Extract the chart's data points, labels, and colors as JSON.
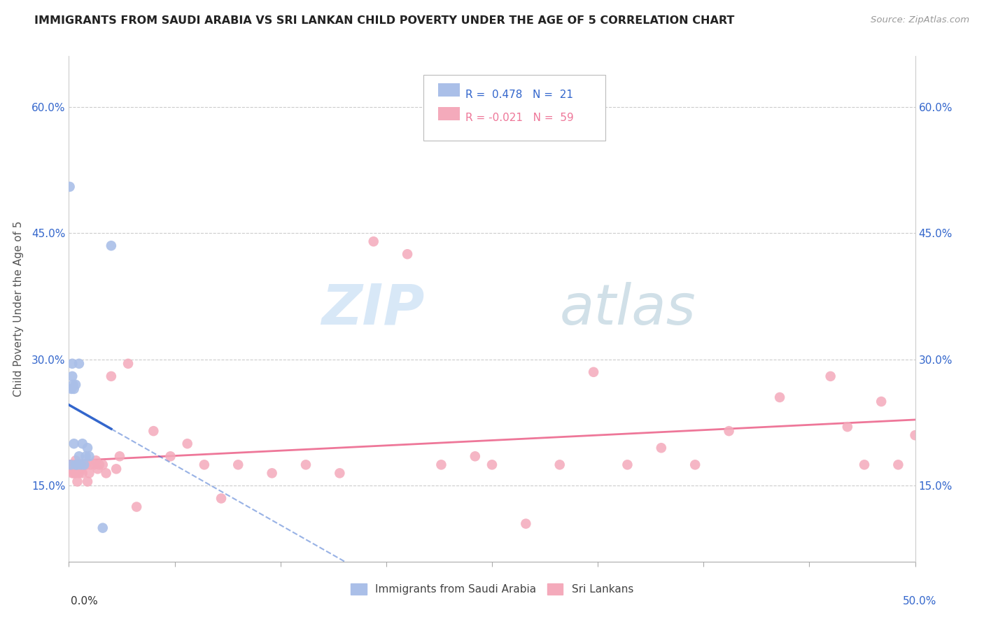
{
  "title": "IMMIGRANTS FROM SAUDI ARABIA VS SRI LANKAN CHILD POVERTY UNDER THE AGE OF 5 CORRELATION CHART",
  "source": "Source: ZipAtlas.com",
  "ylabel": "Child Poverty Under the Age of 5",
  "xlim": [
    0.0,
    0.5
  ],
  "ylim": [
    0.06,
    0.66
  ],
  "xticks": [
    0.0,
    0.0625,
    0.125,
    0.1875,
    0.25,
    0.3125,
    0.375,
    0.4375,
    0.5
  ],
  "xticklabels": [
    "",
    "",
    "",
    "",
    "",
    "",
    "",
    "",
    ""
  ],
  "x_edge_labels": [
    "0.0%",
    "50.0%"
  ],
  "yticks": [
    0.15,
    0.3,
    0.45,
    0.6
  ],
  "yticklabels": [
    "15.0%",
    "30.0%",
    "45.0%",
    "60.0%"
  ],
  "blue_R": 0.478,
  "blue_N": 21,
  "pink_R": -0.021,
  "pink_N": 59,
  "blue_color": "#AABFE8",
  "pink_color": "#F4AABB",
  "blue_line_color": "#3366CC",
  "pink_line_color": "#EE7799",
  "legend1": "Immigrants from Saudi Arabia",
  "legend2": "Sri Lankans",
  "watermark_zip": "ZIP",
  "watermark_atlas": "atlas",
  "blue_scatter_x": [
    0.0005,
    0.001,
    0.0015,
    0.002,
    0.002,
    0.0025,
    0.003,
    0.003,
    0.004,
    0.004,
    0.005,
    0.006,
    0.006,
    0.007,
    0.008,
    0.009,
    0.01,
    0.011,
    0.012,
    0.02,
    0.025
  ],
  "blue_scatter_y": [
    0.505,
    0.175,
    0.265,
    0.28,
    0.295,
    0.27,
    0.2,
    0.265,
    0.175,
    0.27,
    0.175,
    0.185,
    0.295,
    0.175,
    0.2,
    0.175,
    0.185,
    0.195,
    0.185,
    0.1,
    0.435
  ],
  "pink_scatter_x": [
    0.001,
    0.001,
    0.002,
    0.002,
    0.003,
    0.003,
    0.004,
    0.004,
    0.005,
    0.005,
    0.006,
    0.006,
    0.007,
    0.007,
    0.008,
    0.009,
    0.01,
    0.011,
    0.012,
    0.013,
    0.015,
    0.016,
    0.017,
    0.018,
    0.02,
    0.022,
    0.025,
    0.028,
    0.03,
    0.035,
    0.04,
    0.05,
    0.06,
    0.07,
    0.08,
    0.09,
    0.1,
    0.12,
    0.14,
    0.16,
    0.18,
    0.2,
    0.22,
    0.24,
    0.25,
    0.27,
    0.29,
    0.31,
    0.33,
    0.35,
    0.37,
    0.39,
    0.42,
    0.45,
    0.46,
    0.47,
    0.48,
    0.49,
    0.5
  ],
  "pink_scatter_y": [
    0.17,
    0.175,
    0.165,
    0.175,
    0.165,
    0.175,
    0.165,
    0.18,
    0.17,
    0.155,
    0.165,
    0.175,
    0.175,
    0.17,
    0.165,
    0.175,
    0.175,
    0.155,
    0.165,
    0.175,
    0.175,
    0.18,
    0.17,
    0.175,
    0.175,
    0.165,
    0.28,
    0.17,
    0.185,
    0.295,
    0.125,
    0.215,
    0.185,
    0.2,
    0.175,
    0.135,
    0.175,
    0.165,
    0.175,
    0.165,
    0.44,
    0.425,
    0.175,
    0.185,
    0.175,
    0.105,
    0.175,
    0.285,
    0.175,
    0.195,
    0.175,
    0.215,
    0.255,
    0.28,
    0.22,
    0.175,
    0.25,
    0.175,
    0.21
  ]
}
